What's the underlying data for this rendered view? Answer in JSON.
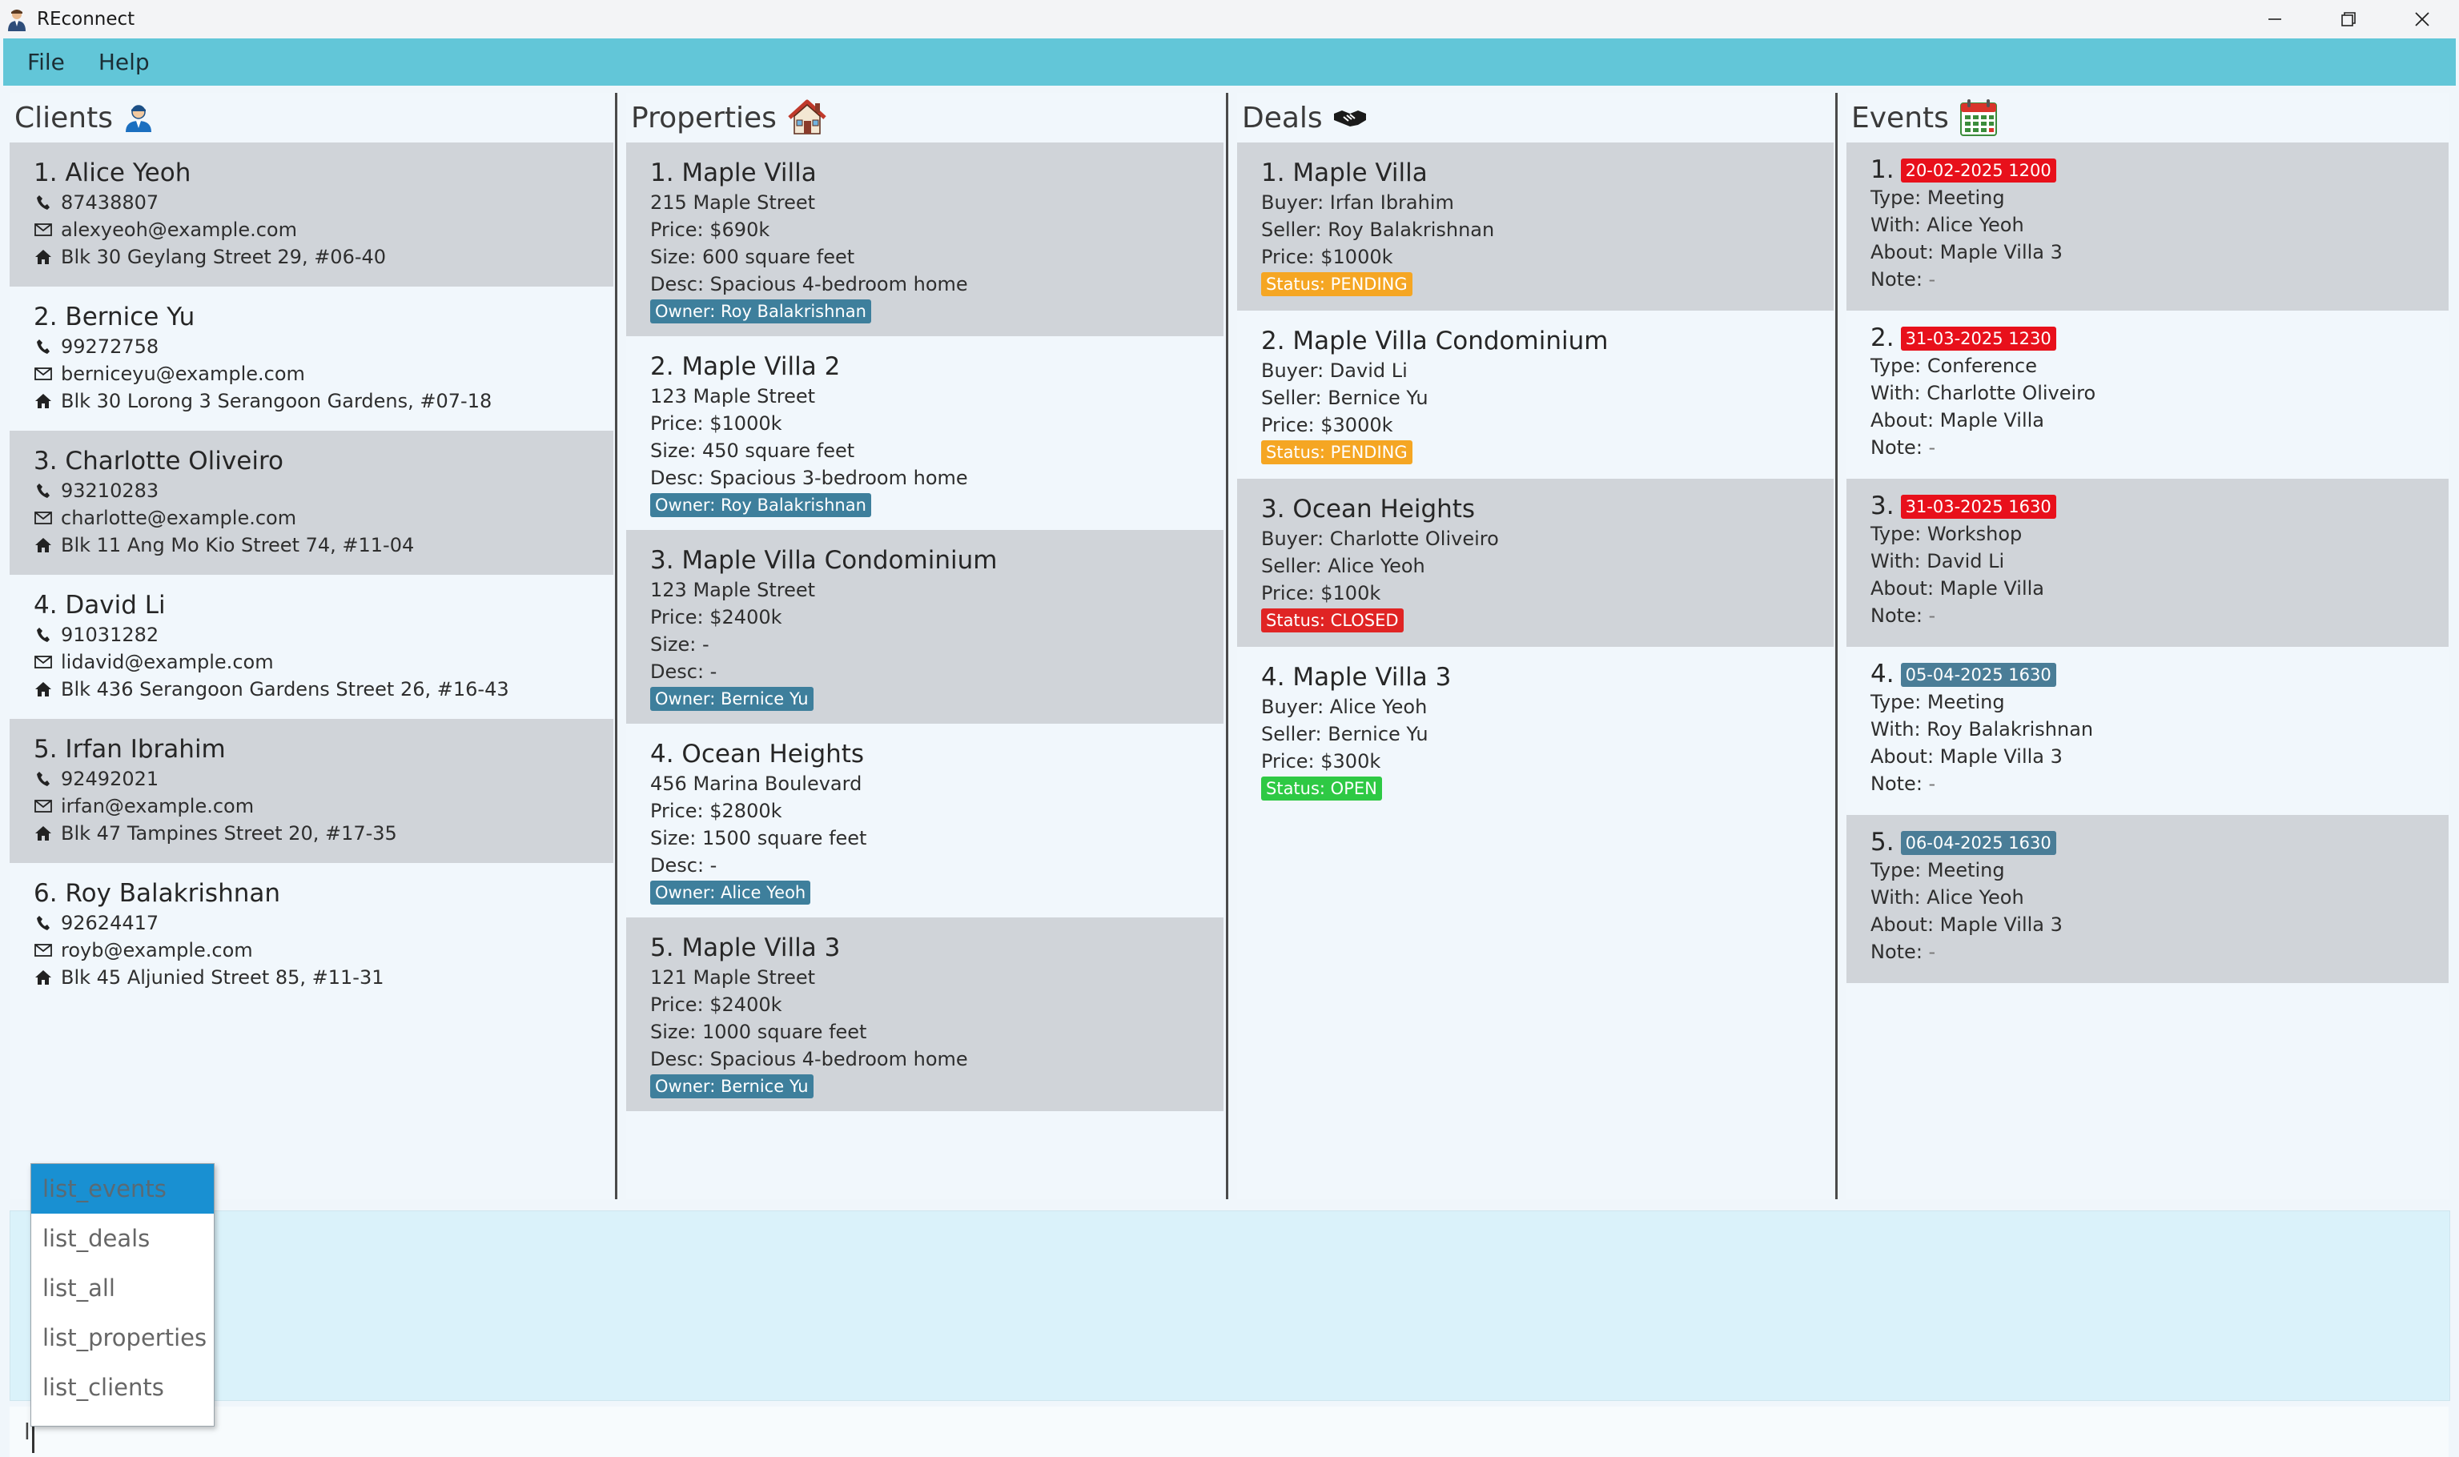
{
  "window": {
    "title": "REconnect"
  },
  "menu": {
    "file": "File",
    "help": "Help"
  },
  "clients": {
    "title": "Clients",
    "items": [
      {
        "name": "1. Alice Yeoh",
        "phone": "87438807",
        "email": "alexyeoh@example.com",
        "address": "Blk 30 Geylang Street 29, #06-40"
      },
      {
        "name": "2. Bernice Yu",
        "phone": "99272758",
        "email": "berniceyu@example.com",
        "address": "Blk 30 Lorong 3 Serangoon Gardens, #07-18"
      },
      {
        "name": "3. Charlotte Oliveiro",
        "phone": "93210283",
        "email": "charlotte@example.com",
        "address": "Blk 11 Ang Mo Kio Street 74, #11-04"
      },
      {
        "name": "4. David Li",
        "phone": "91031282",
        "email": "lidavid@example.com",
        "address": "Blk 436 Serangoon Gardens Street 26, #16-43"
      },
      {
        "name": "5. Irfan Ibrahim",
        "phone": "92492021",
        "email": "irfan@example.com",
        "address": "Blk 47 Tampines Street 20, #17-35"
      },
      {
        "name": "6. Roy Balakrishnan",
        "phone": "92624417",
        "email": "royb@example.com",
        "address": "Blk 45 Aljunied Street 85, #11-31"
      }
    ]
  },
  "properties": {
    "title": "Properties",
    "items": [
      {
        "name": "1. Maple Villa",
        "street": "215 Maple Street",
        "price": "Price: $690k",
        "size": "Size: 600 square feet",
        "desc": "Desc: Spacious 4-bedroom home",
        "owner": "Owner: Roy Balakrishnan"
      },
      {
        "name": "2. Maple Villa 2",
        "street": "123 Maple Street",
        "price": "Price: $1000k",
        "size": "Size: 450 square feet",
        "desc": "Desc: Spacious 3-bedroom home",
        "owner": "Owner: Roy Balakrishnan"
      },
      {
        "name": "3. Maple Villa Condominium",
        "street": "123 Maple Street",
        "price": "Price: $2400k",
        "size": "Size: -",
        "desc": "Desc: -",
        "owner": "Owner: Bernice Yu"
      },
      {
        "name": "4. Ocean Heights",
        "street": "456 Marina Boulevard",
        "price": "Price: $2800k",
        "size": "Size: 1500 square feet",
        "desc": "Desc: -",
        "owner": "Owner: Alice Yeoh"
      },
      {
        "name": "5. Maple Villa 3",
        "street": "121 Maple Street",
        "price": "Price: $2400k",
        "size": "Size: 1000 square feet",
        "desc": "Desc: Spacious 4-bedroom home",
        "owner": "Owner: Bernice Yu"
      }
    ]
  },
  "deals": {
    "title": "Deals",
    "items": [
      {
        "name": "1. Maple Villa",
        "buyer": "Buyer: Irfan Ibrahim",
        "seller": "Seller: Roy Balakrishnan",
        "price": "Price: $1000k",
        "status": "Status: PENDING",
        "status_color": "#f5a623"
      },
      {
        "name": "2. Maple Villa Condominium",
        "buyer": "Buyer: David Li",
        "seller": "Seller: Bernice Yu",
        "price": "Price: $3000k",
        "status": "Status: PENDING",
        "status_color": "#f5a623"
      },
      {
        "name": "3. Ocean Heights",
        "buyer": "Buyer: Charlotte Oliveiro",
        "seller": "Seller: Alice Yeoh",
        "price": "Price: $100k",
        "status": "Status: CLOSED",
        "status_color": "#e02424"
      },
      {
        "name": "4. Maple Villa 3",
        "buyer": "Buyer: Alice Yeoh",
        "seller": "Seller: Bernice Yu",
        "price": "Price: $300k",
        "status": "Status: OPEN",
        "status_color": "#2ec944"
      }
    ]
  },
  "events": {
    "title": "Events",
    "items": [
      {
        "num": "1.",
        "date": "20-02-2025 1200",
        "date_color": "#e8101b",
        "type": "Type: Meeting",
        "with": "With: Alice Yeoh",
        "about": "About: Maple Villa 3",
        "note_label": "Note: ",
        "note_value": "-"
      },
      {
        "num": "2.",
        "date": "31-03-2025 1230",
        "date_color": "#e8101b",
        "type": "Type: Conference",
        "with": "With: Charlotte Oliveiro",
        "about": "About: Maple Villa",
        "note_label": "Note: ",
        "note_value": "-"
      },
      {
        "num": "3.",
        "date": "31-03-2025 1630",
        "date_color": "#e8101b",
        "type": "Type: Workshop",
        "with": "With: David Li",
        "about": "About: Maple Villa",
        "note_label": "Note: ",
        "note_value": "-"
      },
      {
        "num": "4.",
        "date": "05-04-2025 1630",
        "date_color": "#4a7d97",
        "type": "Type: Meeting",
        "with": "With: Roy Balakrishnan",
        "about": "About: Maple Villa 3",
        "note_label": "Note: ",
        "note_value": "-"
      },
      {
        "num": "5.",
        "date": "06-04-2025 1630",
        "date_color": "#4a7d97",
        "type": "Type: Meeting",
        "with": "With: Alice Yeoh",
        "about": "About: Maple Villa 3",
        "note_label": "Note: ",
        "note_value": "-"
      }
    ]
  },
  "autocomplete": {
    "options": [
      "list_events",
      "list_deals",
      "list_all",
      "list_properties",
      "list_clients"
    ],
    "selected": "list_events"
  },
  "command": {
    "value": "l"
  },
  "icons": {
    "app": "agent-avatar-icon",
    "clients": "person-icon",
    "properties": "house-icon",
    "deals": "handshake-icon",
    "events": "calendar-icon"
  }
}
